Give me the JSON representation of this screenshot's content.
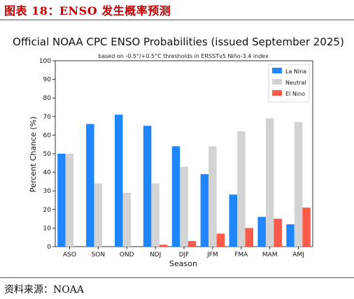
{
  "header": {
    "title": "图表 18：ENSO 发生概率预测"
  },
  "footer": {
    "source": "资料来源：NOAA"
  },
  "colors": {
    "la_nina": "#1f86ff",
    "neutral": "#d3d3d3",
    "el_nino": "#ff5a4a",
    "header_red": "#c00000"
  },
  "chart_data": {
    "type": "bar",
    "title": "Official NOAA CPC ENSO Probabilities (issued September 2025)",
    "subtitle": "based on -0.5°/+0.5°C thresholds in ERSSTv5 Niño-3.4 index",
    "xlabel": "Season",
    "ylabel": "Percent Chance (%)",
    "ylim": [
      0,
      100
    ],
    "yticks": [
      0,
      10,
      20,
      30,
      40,
      50,
      60,
      70,
      80,
      90,
      100
    ],
    "categories": [
      "ASO",
      "SON",
      "OND",
      "NDJ",
      "DJF",
      "JFM",
      "FMA",
      "MAM",
      "AMJ"
    ],
    "series": [
      {
        "name": "La Nina",
        "color": "#1f86ff",
        "values": [
          50,
          66,
          71,
          65,
          54,
          39,
          28,
          16,
          12
        ]
      },
      {
        "name": "Neutral",
        "color": "#d3d3d3",
        "values": [
          50,
          34,
          29,
          34,
          43,
          54,
          62,
          69,
          67
        ]
      },
      {
        "name": "El Nino",
        "color": "#ff5a4a",
        "values": [
          0,
          0,
          0,
          1,
          3,
          7,
          10,
          15,
          21
        ]
      }
    ],
    "legend": "top-right",
    "grid": false
  }
}
